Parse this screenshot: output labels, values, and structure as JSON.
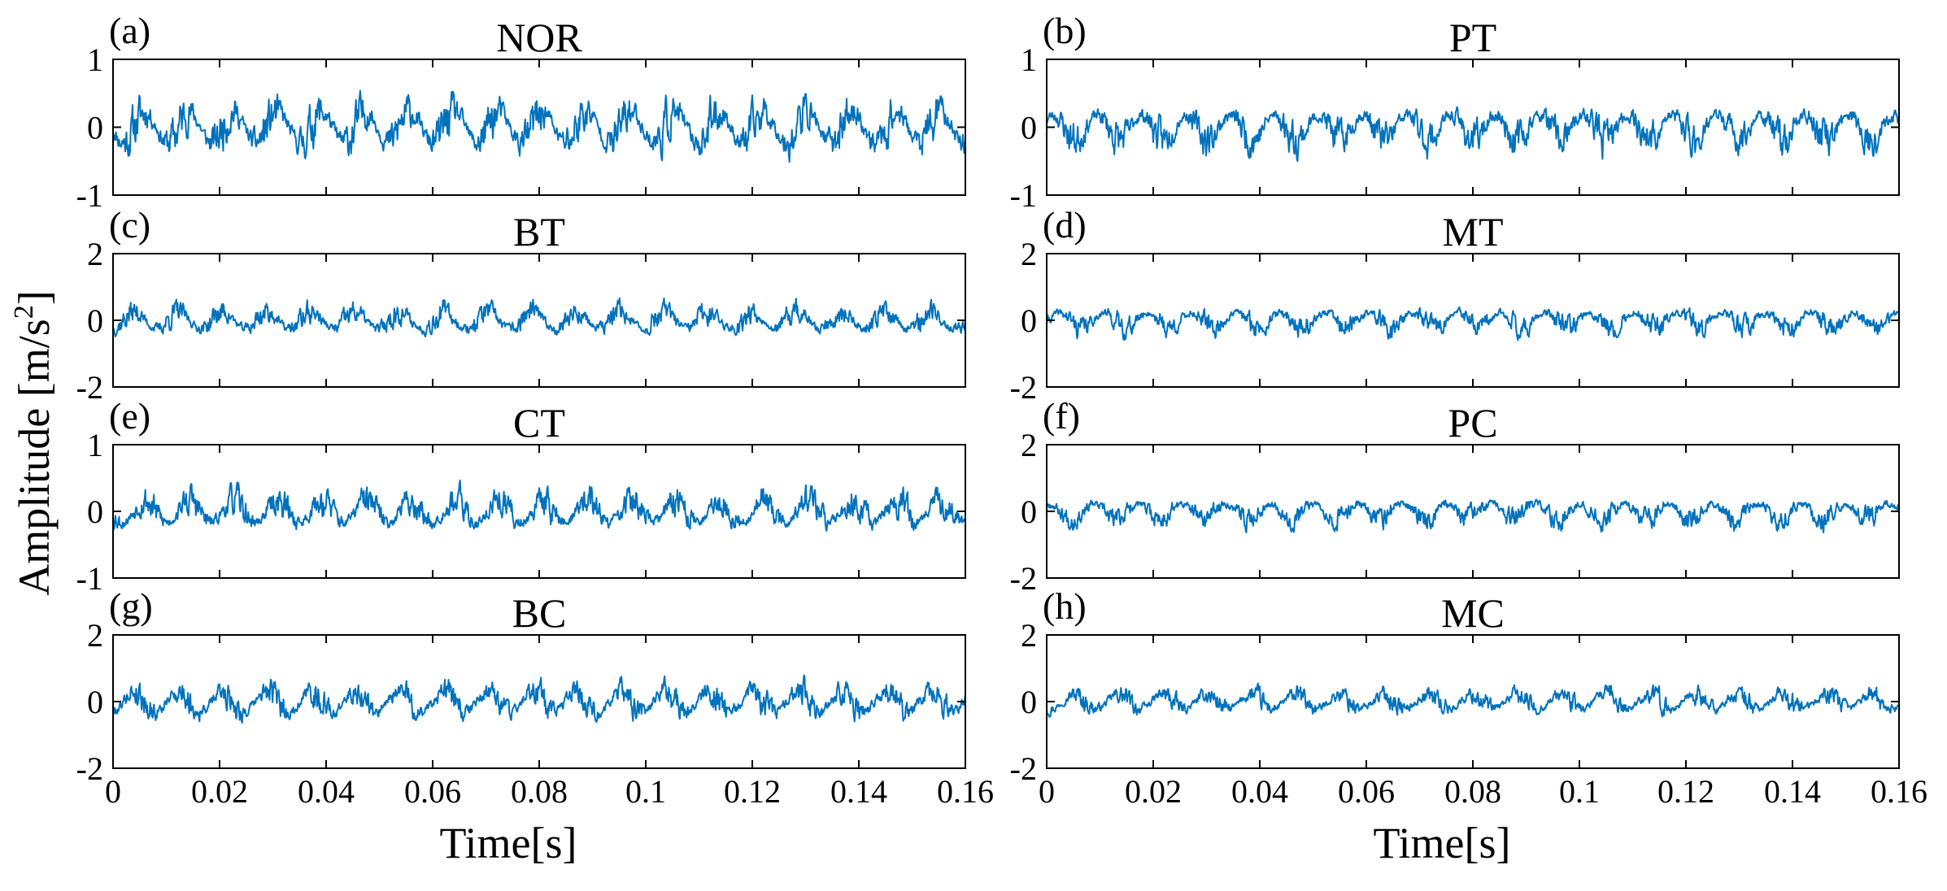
{
  "figure": {
    "ylabel_main": "Amplitude [m/s",
    "ylabel_sup": "2",
    "ylabel_close": "]",
    "xlabel": "Time[s]",
    "line_color": "#0072BD"
  },
  "chart_data": [
    {
      "type": "line",
      "letter": "(a)",
      "title": "NOR",
      "xlim": [
        0,
        0.16
      ],
      "ylim": [
        -1,
        1
      ],
      "yticks": [
        "1",
        "0",
        "-1"
      ],
      "xticks": [],
      "amp": 0.4,
      "period": 0.0083,
      "seed": 11
    },
    {
      "type": "line",
      "letter": "(b)",
      "title": "PT",
      "xlim": [
        0,
        0.16
      ],
      "ylim": [
        -1,
        1
      ],
      "yticks": [
        "1",
        "0",
        "-1"
      ],
      "xticks": [],
      "amp": 0.32,
      "period": 0.0083,
      "seed": 23
    },
    {
      "type": "line",
      "letter": "(c)",
      "title": "BT",
      "xlim": [
        0,
        0.16
      ],
      "ylim": [
        -2,
        2
      ],
      "yticks": [
        "2",
        "0",
        "-2"
      ],
      "xticks": [],
      "amp": 0.45,
      "period": 0.0083,
      "seed": 37
    },
    {
      "type": "line",
      "letter": "(d)",
      "title": "MT",
      "xlim": [
        0,
        0.16
      ],
      "ylim": [
        -2,
        2
      ],
      "yticks": [
        "2",
        "0",
        "-2"
      ],
      "xticks": [],
      "amp": 0.4,
      "period": 0.0083,
      "seed": 41
    },
    {
      "type": "line",
      "letter": "(e)",
      "title": "CT",
      "xlim": [
        0,
        0.16
      ],
      "ylim": [
        -1,
        1
      ],
      "yticks": [
        "1",
        "0",
        "-1"
      ],
      "xticks": [],
      "amp": 0.3,
      "period": 0.0083,
      "seed": 53
    },
    {
      "type": "line",
      "letter": "(f)",
      "title": "PC",
      "xlim": [
        0,
        0.16
      ],
      "ylim": [
        -2,
        2
      ],
      "yticks": [
        "2",
        "0",
        "-2"
      ],
      "xticks": [],
      "amp": 0.4,
      "period": 0.0083,
      "seed": 67
    },
    {
      "type": "line",
      "letter": "(g)",
      "title": "BC",
      "xlim": [
        0,
        0.16
      ],
      "ylim": [
        -2,
        2
      ],
      "yticks": [
        "2",
        "0",
        "-2"
      ],
      "xticks": [
        "0",
        "0.02",
        "0.04",
        "0.06",
        "0.08",
        "0.1",
        "0.12",
        "0.14",
        "0.16"
      ],
      "amp": 0.55,
      "period": 0.0083,
      "seed": 79
    },
    {
      "type": "line",
      "letter": "(h)",
      "title": "MC",
      "xlim": [
        0,
        0.16
      ],
      "ylim": [
        -2,
        2
      ],
      "yticks": [
        "2",
        "0",
        "-2"
      ],
      "xticks": [
        "0",
        "0.02",
        "0.04",
        "0.06",
        "0.08",
        "0.1",
        "0.12",
        "0.14",
        "0.16"
      ],
      "amp": 0.38,
      "period": 0.0083,
      "seed": 97
    }
  ]
}
